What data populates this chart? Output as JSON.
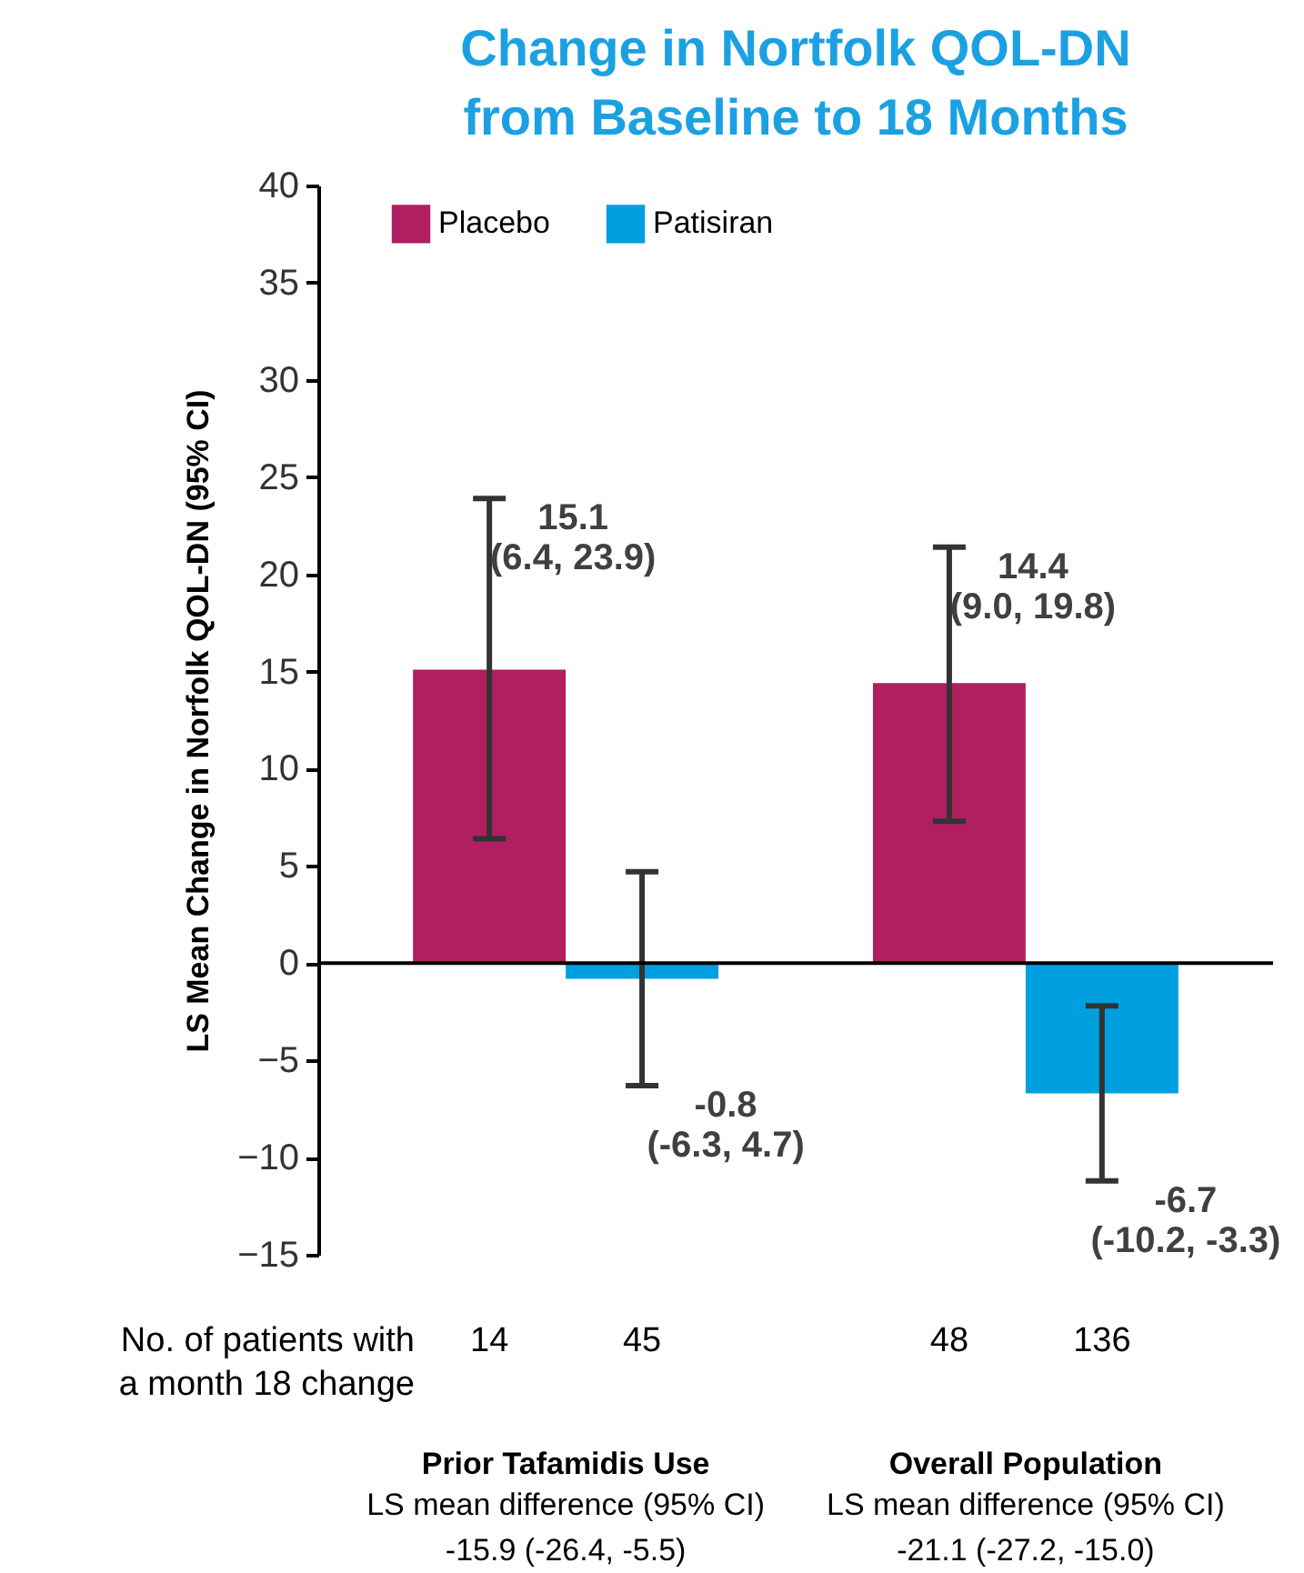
{
  "chart_data": {
    "type": "bar",
    "title": [
      "Change in Nortfolk QOL-DN",
      "from Baseline to 18 Months"
    ],
    "ylabel": "LS Mean Change in Norfolk QOL-DN (95% CI)",
    "categories": [
      "Prior Tafamidis Use",
      "Overall Population"
    ],
    "series": [
      {
        "name": "Placebo",
        "color": "#b01f62",
        "values": [
          15.1,
          14.4
        ],
        "errors": [
          [
            6.4,
            23.9
          ],
          [
            7.3,
            21.4
          ]
        ],
        "value_labels": [
          "15.1\n(6.4, 23.9)",
          "14.4\n(9.0, 19.8)"
        ]
      },
      {
        "name": "Patisiran",
        "color": "#009fdf",
        "values": [
          -0.8,
          -6.7
        ],
        "errors": [
          [
            -6.3,
            4.7
          ],
          [
            -11.2,
            -2.2
          ]
        ],
        "value_labels": [
          "-0.8\n(-6.3, 4.7)",
          "-6.7\n(-10.2, -3.3)"
        ]
      }
    ],
    "ylim": [
      -15,
      40
    ],
    "yticks": [
      -15,
      -10,
      -5,
      0,
      5,
      10,
      15,
      20,
      25,
      30,
      35,
      40
    ],
    "ref_lines": [
      {
        "axis": "y",
        "value": 0
      }
    ],
    "legend": "top left",
    "grid": false,
    "annotations": [
      "No. of patients with\na month 18 change",
      "14",
      "45",
      "48",
      "136",
      "LS mean difference (95% CI)",
      "-15.9 (-26.4, -5.5)",
      "LS mean difference (95% CI)",
      "-21.1 (-27.2, -15.0)"
    ]
  }
}
